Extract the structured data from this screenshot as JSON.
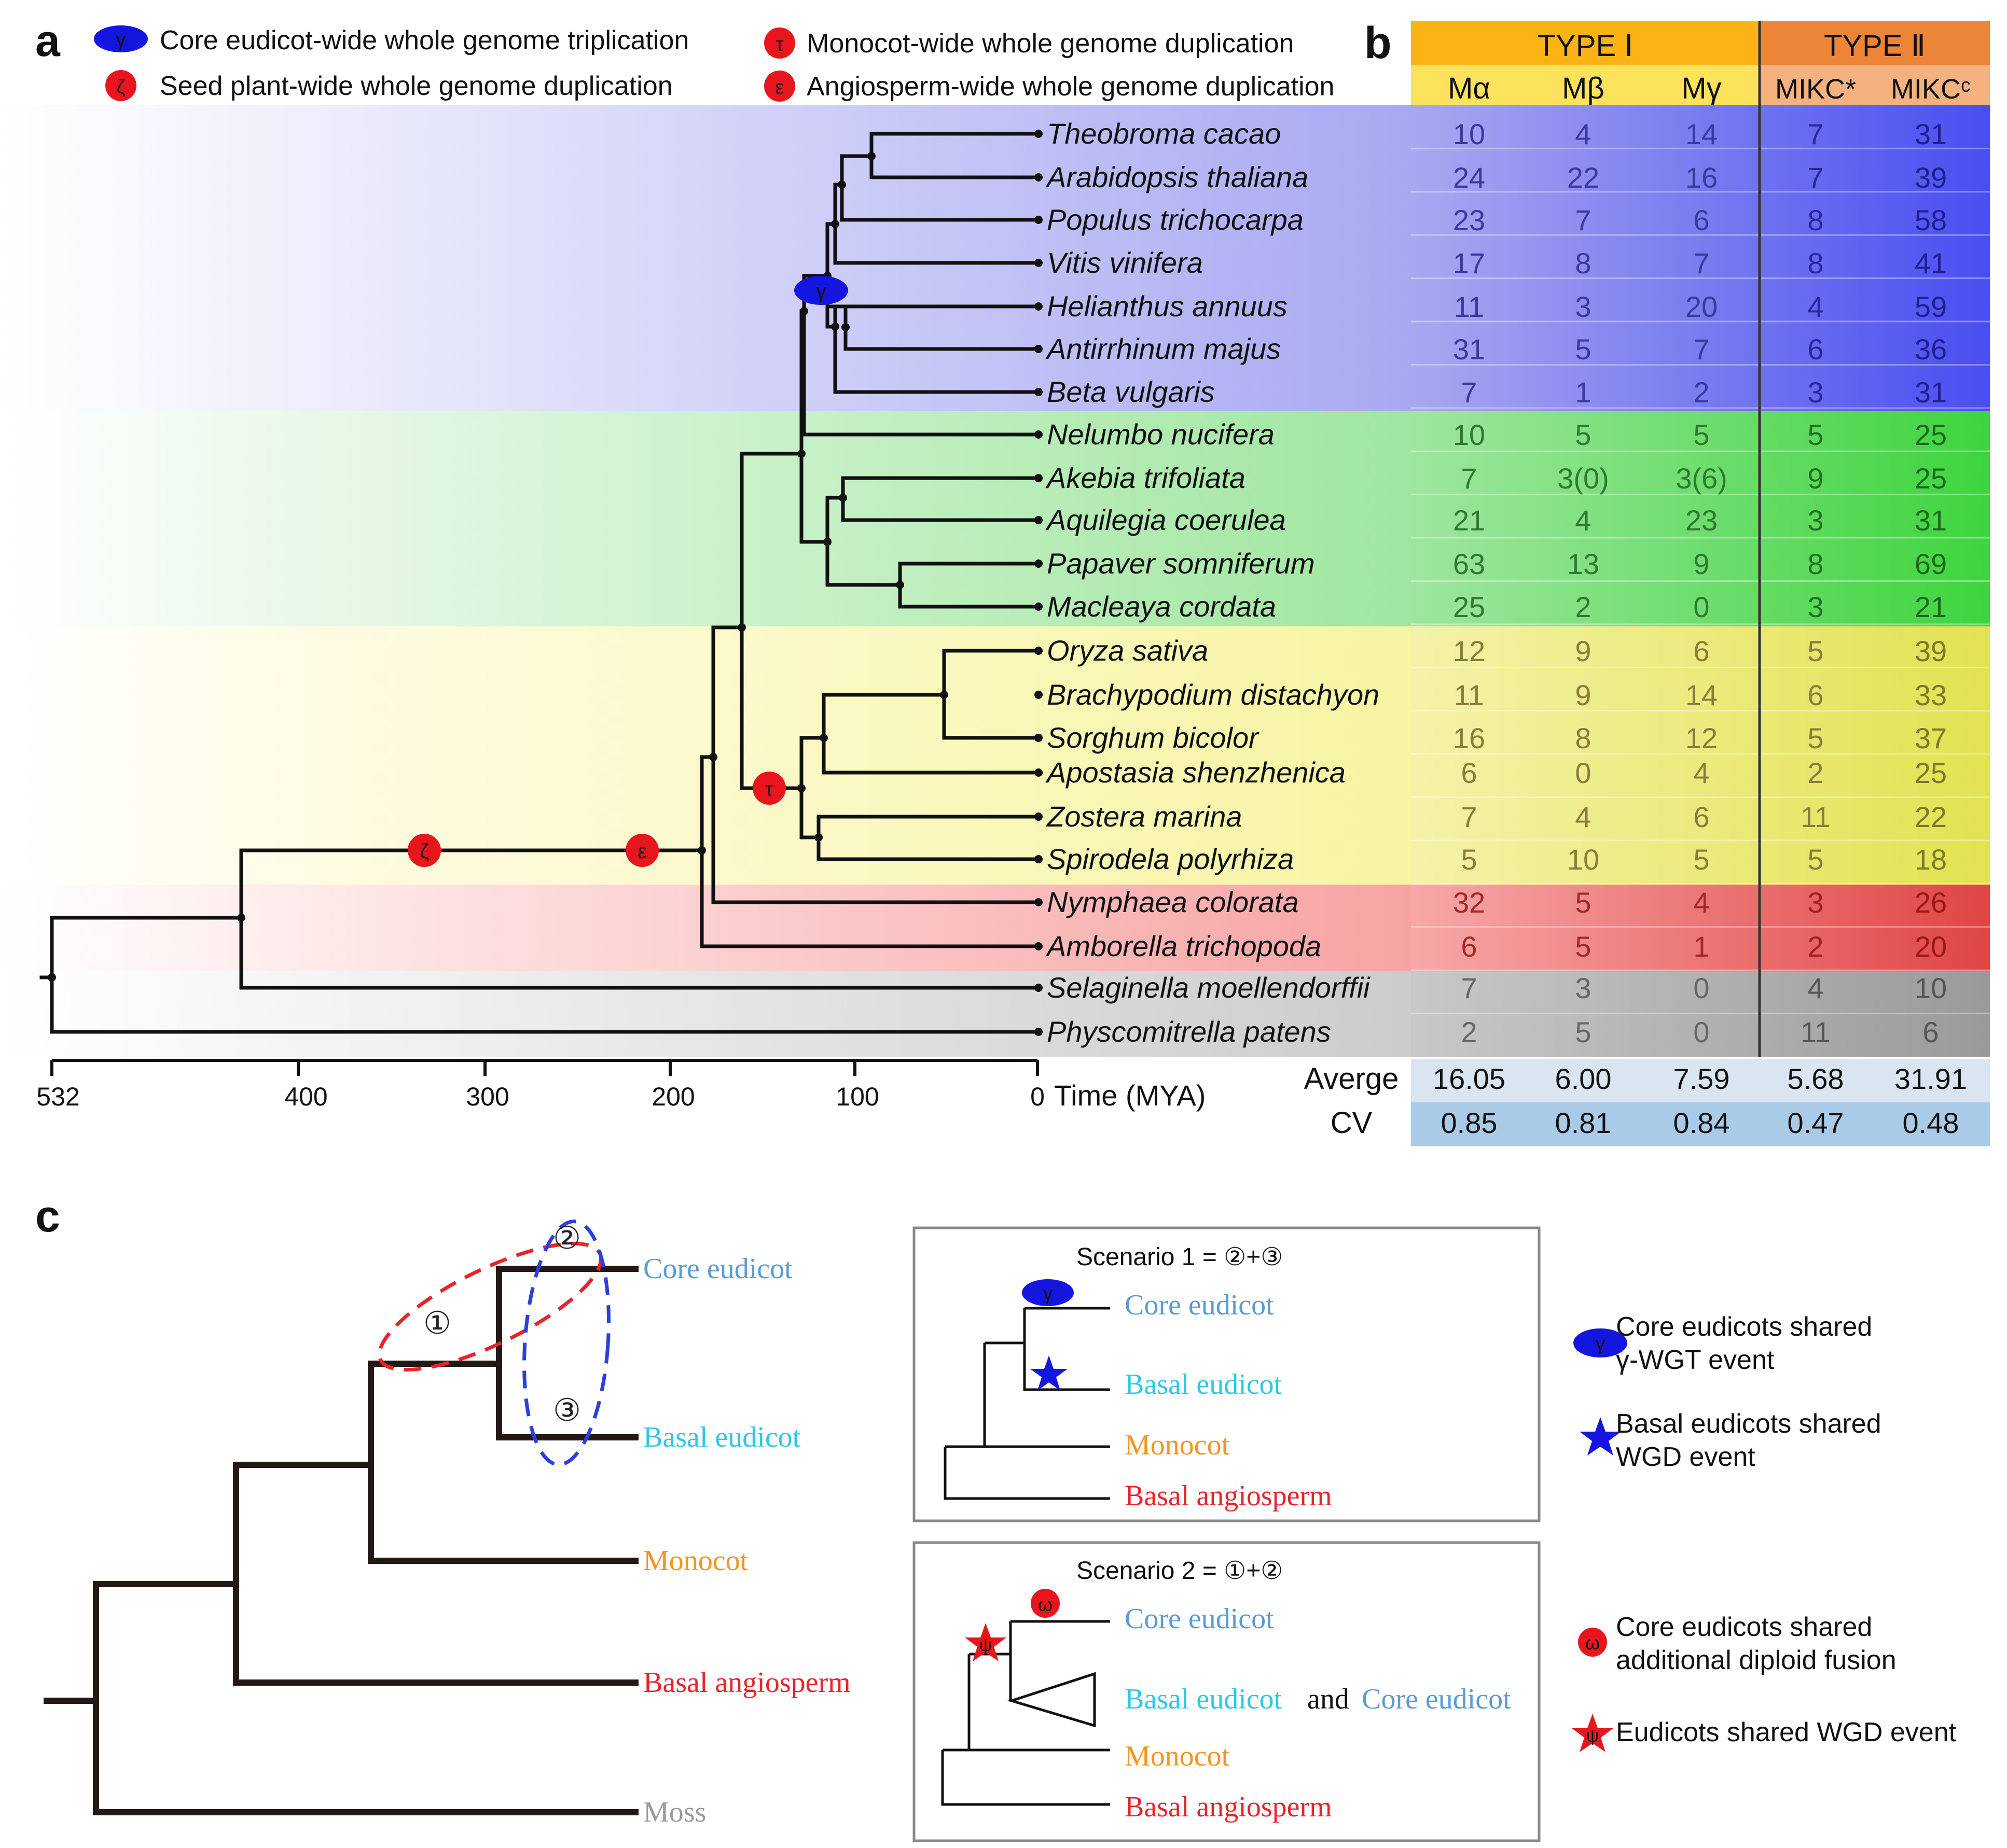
{
  "panel_labels": {
    "a": "a",
    "b": "b",
    "c": "c"
  },
  "legend_a": {
    "gamma_symbol": "γ",
    "zeta_symbol": "ζ",
    "tau_symbol": "τ",
    "epsilon_symbol": "ε",
    "gamma_text": "Core eudicot-wide whole genome triplication",
    "zeta_text": "Seed plant-wide whole genome duplication",
    "tau_text": "Monocot-wide whole genome duplication",
    "epsilon_text": "Angiosperm-wide whole genome duplication"
  },
  "species": [
    "Theobroma cacao",
    "Arabidopsis thaliana",
    "Populus trichocarpa",
    "Vitis vinifera",
    "Helianthus annuus",
    "Antirrhinum majus",
    "Beta vulgaris",
    "Nelumbo nucifera",
    "Akebia trifoliata",
    "Aquilegia coerulea",
    "Papaver somniferum",
    "Macleaya cordata",
    "Oryza sativa",
    "Brachypodium distachyon",
    "Sorghum bicolor",
    "Apostasia shenzhenica",
    "Zostera marina",
    "Spirodela polyrhiza",
    "Nymphaea colorata",
    "Amborella trichopoda",
    "Selaginella moellendorffii",
    "Physcomitrella patens"
  ],
  "axis": {
    "ticks": [
      "532",
      "400",
      "300",
      "200",
      "100",
      "0"
    ],
    "label": "Time (MYA)"
  },
  "table": {
    "type1": "TYPE Ⅰ",
    "type2": "TYPE Ⅱ",
    "cols": [
      "Mα",
      "Mβ",
      "Mγ",
      "MIKC*",
      "MIKCᶜ"
    ],
    "rows": [
      [
        "10",
        "4",
        "14",
        "7",
        "31"
      ],
      [
        "24",
        "22",
        "16",
        "7",
        "39"
      ],
      [
        "23",
        "7",
        "6",
        "8",
        "58"
      ],
      [
        "17",
        "8",
        "7",
        "8",
        "41"
      ],
      [
        "11",
        "3",
        "20",
        "4",
        "59"
      ],
      [
        "31",
        "5",
        "7",
        "6",
        "36"
      ],
      [
        "7",
        "1",
        "2",
        "3",
        "31"
      ],
      [
        "10",
        "5",
        "5",
        "5",
        "25"
      ],
      [
        "7",
        "3(0)",
        "3(6)",
        "9",
        "25"
      ],
      [
        "21",
        "4",
        "23",
        "3",
        "31"
      ],
      [
        "63",
        "13",
        "9",
        "8",
        "69"
      ],
      [
        "25",
        "2",
        "0",
        "3",
        "21"
      ],
      [
        "12",
        "9",
        "6",
        "5",
        "39"
      ],
      [
        "11",
        "9",
        "14",
        "6",
        "33"
      ],
      [
        "16",
        "8",
        "12",
        "5",
        "37"
      ],
      [
        "6",
        "0",
        "4",
        "2",
        "25"
      ],
      [
        "7",
        "4",
        "6",
        "11",
        "22"
      ],
      [
        "5",
        "10",
        "5",
        "5",
        "18"
      ],
      [
        "32",
        "5",
        "4",
        "3",
        "26"
      ],
      [
        "6",
        "5",
        "1",
        "2",
        "20"
      ],
      [
        "7",
        "3",
        "0",
        "4",
        "10"
      ],
      [
        "2",
        "5",
        "0",
        "11",
        "6"
      ]
    ],
    "average_label": "Averge",
    "average": [
      "16.05",
      "6.00",
      "7.59",
      "5.68",
      "31.91"
    ],
    "cv_label": "CV",
    "cv": [
      "0.85",
      "0.81",
      "0.84",
      "0.47",
      "0.48"
    ]
  },
  "panel_c": {
    "circle1": "①",
    "circle2": "②",
    "circle3": "③",
    "core_eudicot": "Core eudicot",
    "basal_eudicot": "Basal eudicot",
    "monocot": "Monocot",
    "basal_angiosperm": "Basal angiosperm",
    "moss": "Moss",
    "and": "and",
    "scenario1_title": "Scenario 1 = ②+③",
    "scenario2_title": "Scenario 2 = ①+②",
    "gamma_symbol": "γ",
    "omega_symbol": "ω",
    "psi_symbol": "ψ",
    "legend_gamma_line1": "Core eudicots shared",
    "legend_gamma_line2": "γ-WGT event",
    "legend_star_line1": "Basal eudicots shared",
    "legend_star_line2": "WGD event",
    "legend_omega_line1": "Core eudicots shared",
    "legend_omega_line2": "additional diploid fusion",
    "legend_psi_line1": "Eudicots shared WGD event"
  },
  "colors": {
    "core_eudicot": "#5B9BD5",
    "basal_eudicot": "#2BC8E8",
    "monocot": "#F5941E",
    "basal_angiosperm": "#E8232A",
    "moss": "#9A9A9A",
    "type1_header": "#FBBA18",
    "type2_header": "#ED8B3E",
    "event_red": "#E8161C",
    "event_blue": "#1515E0"
  }
}
